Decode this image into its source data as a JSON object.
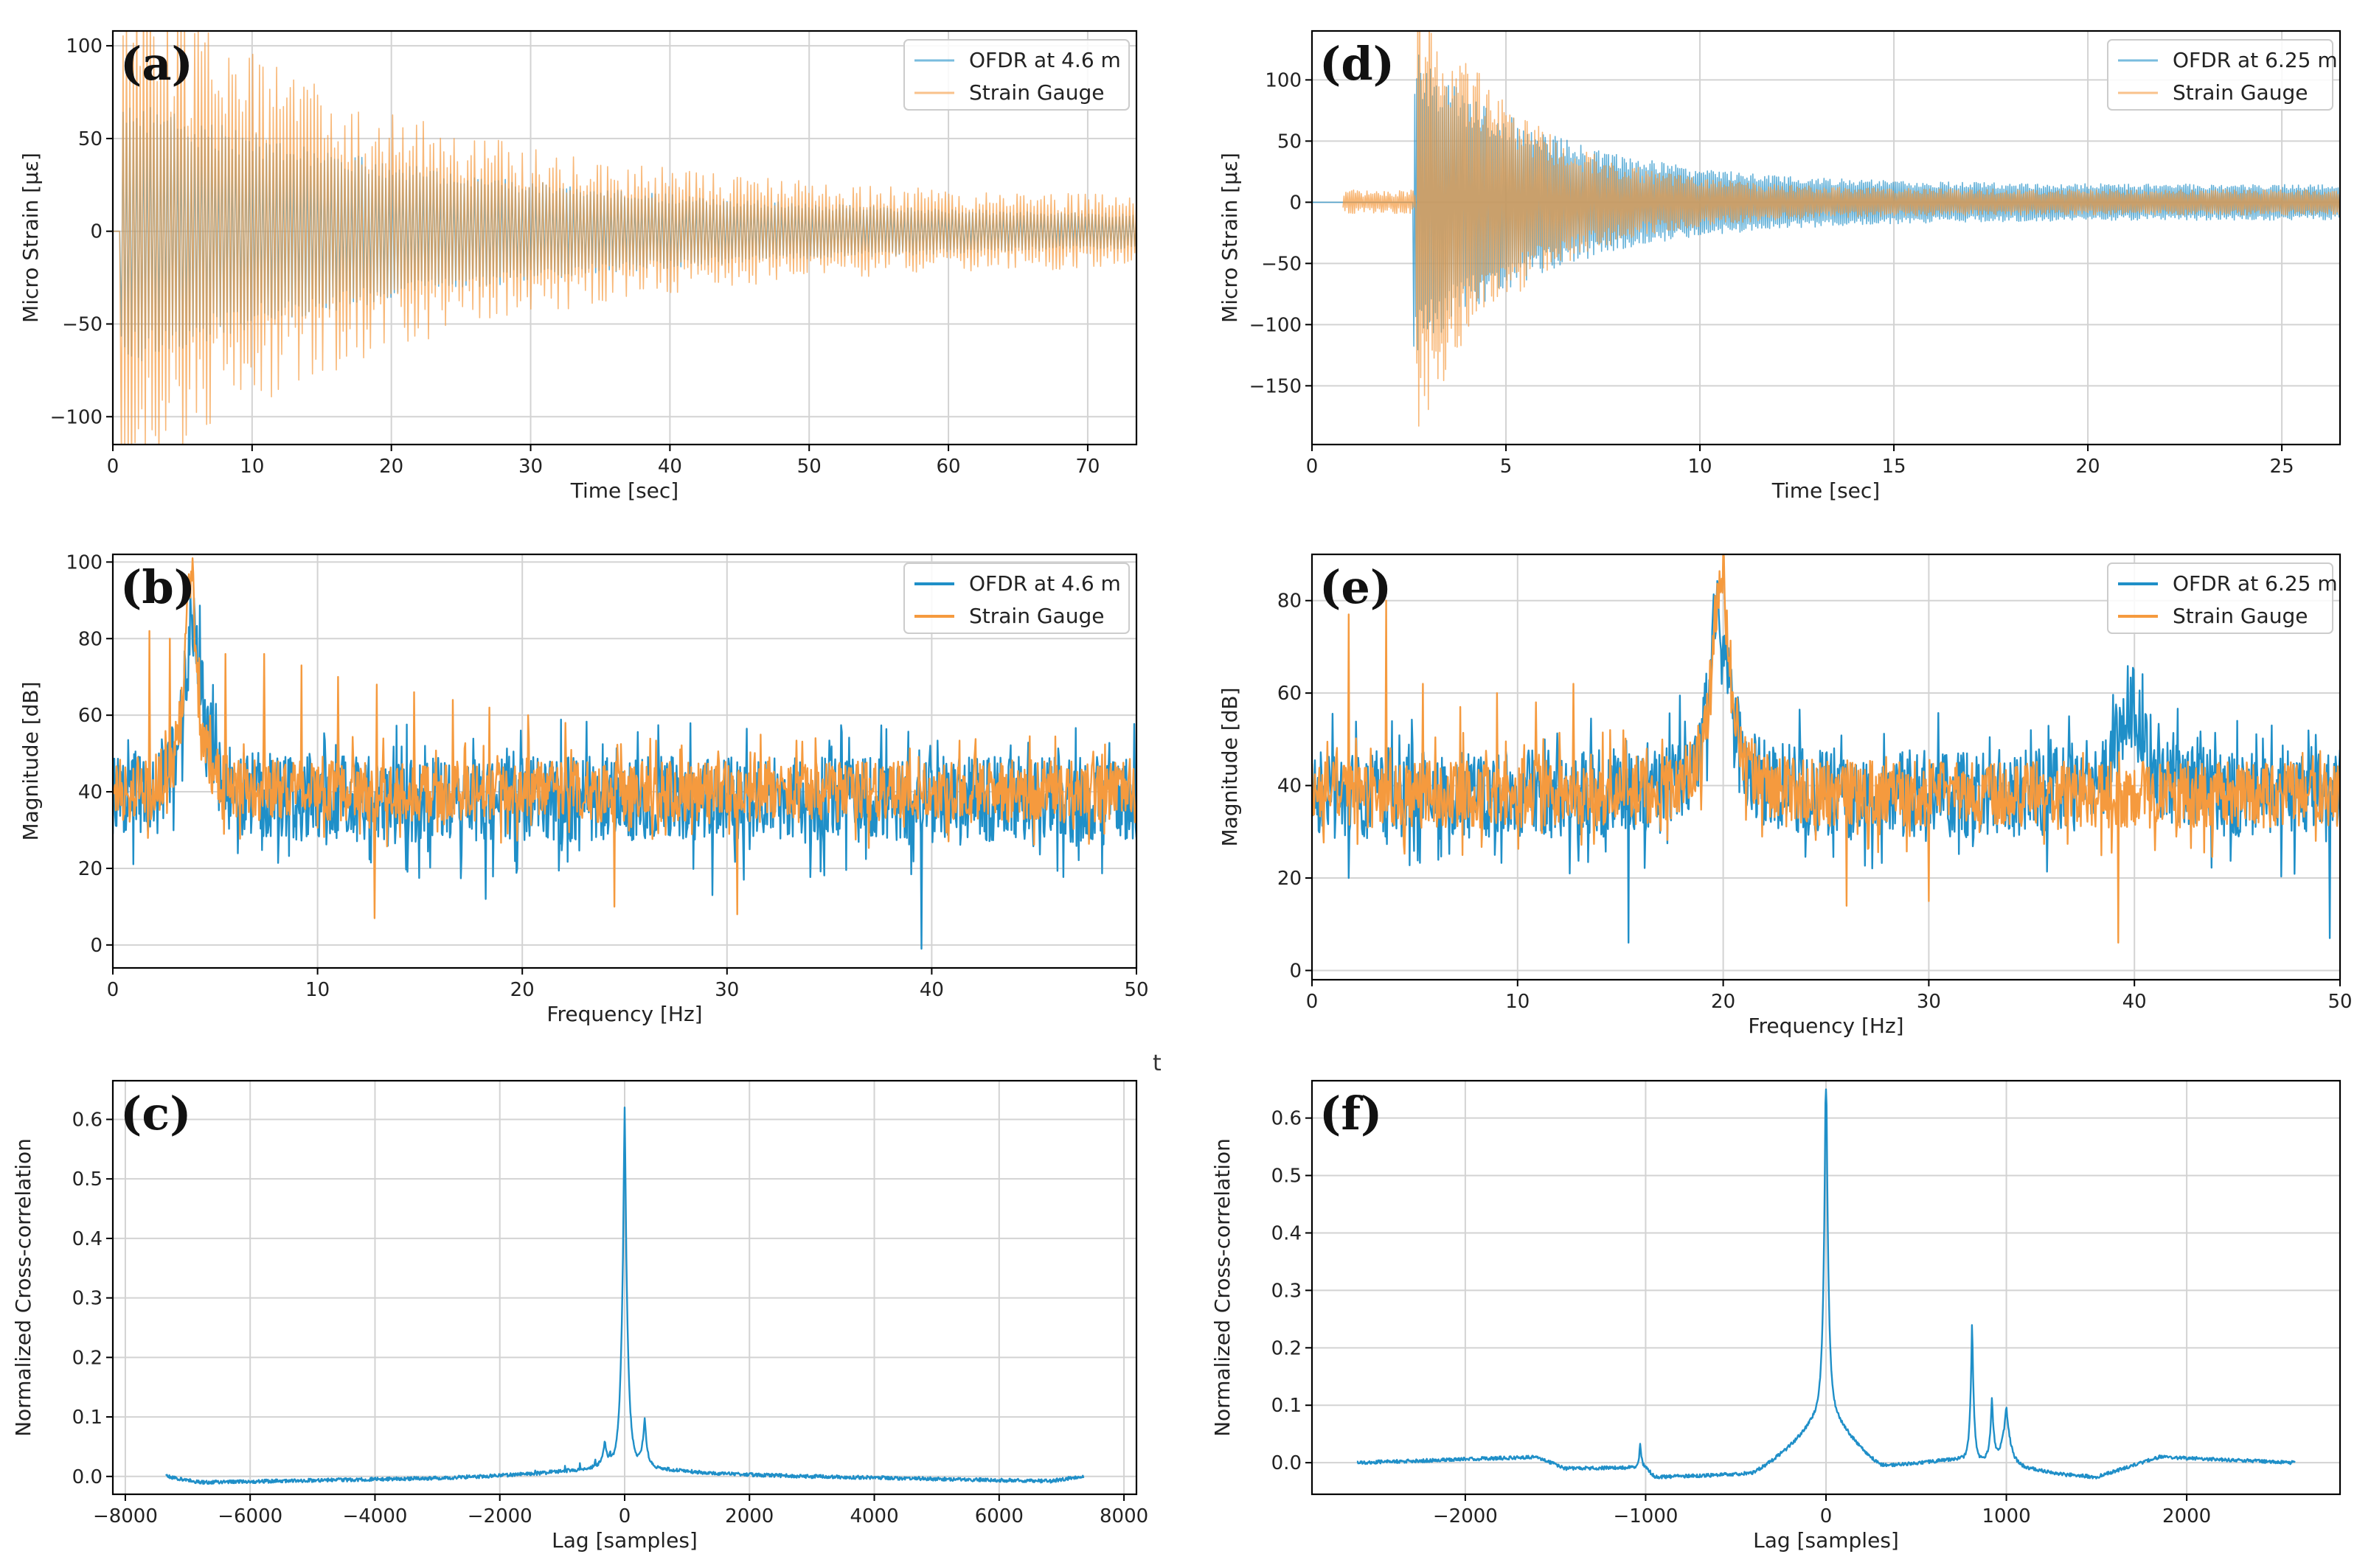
{
  "colors": {
    "ofdr": "#1f8fc8",
    "gauge": "#f59a3e",
    "grid": "#d3d3d3",
    "axis": "#000000"
  },
  "stray_text": "t",
  "chart_data": [
    {
      "id": "a",
      "type": "line",
      "letter": "(a)",
      "xlabel": "Time [sec]",
      "ylabel": "Micro Strain [μɛ]",
      "xlim": [
        0,
        73.5
      ],
      "ylim": [
        -115,
        108
      ],
      "xticks": [
        0,
        10,
        20,
        30,
        40,
        50,
        60,
        70
      ],
      "yticks": [
        -100,
        -50,
        0,
        50,
        100
      ],
      "legend": [
        "OFDR at 4.6 m",
        "Strain Gauge"
      ],
      "legend_position": "top-right",
      "series": [
        {
          "name": "OFDR at 4.6 m",
          "kind": "oscillation",
          "thin": true,
          "x_start": 0,
          "x_end": 73.5,
          "start_time": 0.5,
          "amplitude": 60,
          "tau": 25,
          "floor": 5,
          "cycles": 300,
          "noise": 0.15
        },
        {
          "name": "Strain Gauge",
          "kind": "oscillation",
          "thin": true,
          "x_start": 0,
          "x_end": 73.5,
          "start_time": 0.5,
          "amplitude": 95,
          "tau": 20,
          "floor": 12,
          "cycles": 300,
          "noise": 0.35
        }
      ]
    },
    {
      "id": "d",
      "type": "line",
      "letter": "(d)",
      "xlabel": "Time [sec]",
      "ylabel": "Micro Strain [μɛ]",
      "xlim": [
        0,
        26.5
      ],
      "ylim": [
        -198,
        140
      ],
      "xticks": [
        0,
        5,
        10,
        15,
        20,
        25
      ],
      "yticks": [
        -150,
        -100,
        -50,
        0,
        50,
        100
      ],
      "legend": [
        "OFDR at 6.25 m",
        "Strain Gauge"
      ],
      "legend_position": "top-right",
      "series": [
        {
          "name": "OFDR at 6.25 m",
          "kind": "oscillation",
          "thin": true,
          "x_start": 0,
          "x_end": 26.5,
          "start_time": 2.6,
          "amplitude": 95,
          "tau": 3.5,
          "floor": 12,
          "cycles": 520,
          "noise": 0.2,
          "pre_amp": 0
        },
        {
          "name": "Strain Gauge",
          "kind": "oscillation",
          "thin": true,
          "x_start": 0.8,
          "x_end": 26.5,
          "start_time": 2.7,
          "amplitude": 140,
          "tau": 2.5,
          "floor": 8,
          "cycles": 520,
          "noise": 0.3,
          "pre_amp": 10
        }
      ]
    },
    {
      "id": "b",
      "type": "line",
      "letter": "(b)",
      "xlabel": "Frequency [Hz]",
      "ylabel": "Magnitude [dB]",
      "xlim": [
        0,
        50
      ],
      "ylim": [
        -6,
        102
      ],
      "xticks": [
        0,
        10,
        20,
        30,
        40,
        50
      ],
      "yticks": [
        0,
        20,
        40,
        60,
        80,
        100
      ],
      "legend": [
        "OFDR at 4.6 m",
        "Strain Gauge"
      ],
      "legend_position": "top-right",
      "series": [
        {
          "name": "OFDR at 4.6 m",
          "kind": "spectrum",
          "base": 38,
          "noise": 14,
          "peaks": [
            [
              3.9,
              85,
              0.5
            ]
          ],
          "spikes": [],
          "dips": [
            [
              39.5,
              -1
            ],
            [
              18.2,
              12
            ],
            [
              29.3,
              13
            ]
          ]
        },
        {
          "name": "Strain Gauge",
          "kind": "spectrum",
          "base": 40,
          "noise": 10,
          "peaks": [
            [
              3.8,
              97,
              0.35
            ]
          ],
          "spikes": [
            [
              1.8,
              82
            ],
            [
              2.8,
              80
            ],
            [
              5.5,
              76
            ],
            [
              7.4,
              76
            ],
            [
              9.2,
              73
            ],
            [
              11.0,
              70
            ],
            [
              12.9,
              68
            ],
            [
              14.7,
              66
            ],
            [
              16.6,
              64
            ],
            [
              18.4,
              62
            ],
            [
              20.3,
              60
            ],
            [
              22.1,
              58
            ]
          ],
          "dips": [
            [
              12.8,
              7
            ],
            [
              24.5,
              10
            ],
            [
              30.5,
              8
            ]
          ]
        }
      ]
    },
    {
      "id": "e",
      "type": "line",
      "letter": "(e)",
      "xlabel": "Frequency [Hz]",
      "ylabel": "Magnitude [dB]",
      "xlim": [
        0,
        50
      ],
      "ylim": [
        -2,
        90
      ],
      "xticks": [
        0,
        10,
        20,
        30,
        40,
        50
      ],
      "yticks": [
        0,
        20,
        40,
        60,
        80
      ],
      "legend": [
        "OFDR at 6.25 m",
        "Strain Gauge"
      ],
      "legend_position": "top-right",
      "series": [
        {
          "name": "OFDR at 6.25 m",
          "kind": "spectrum",
          "base": 38,
          "noise": 12,
          "peaks": [
            [
              19.8,
              79,
              0.6
            ],
            [
              39.8,
              58,
              0.8
            ]
          ],
          "spikes": [],
          "dips": [
            [
              15.4,
              6
            ],
            [
              49.5,
              7
            ],
            [
              1.8,
              20
            ]
          ]
        },
        {
          "name": "Strain Gauge",
          "kind": "spectrum",
          "base": 38,
          "noise": 9,
          "peaks": [
            [
              19.9,
              87,
              0.5
            ]
          ],
          "spikes": [
            [
              1.8,
              77
            ],
            [
              3.6,
              80
            ],
            [
              5.4,
              62
            ],
            [
              7.2,
              57
            ],
            [
              9.0,
              60
            ],
            [
              10.9,
              58
            ],
            [
              12.7,
              62
            ],
            [
              14.5,
              52
            ],
            [
              16.3,
              48
            ]
          ],
          "dips": [
            [
              39.2,
              6
            ],
            [
              26.0,
              14
            ],
            [
              30.0,
              15
            ]
          ]
        }
      ]
    },
    {
      "id": "c",
      "type": "line",
      "letter": "(c)",
      "xlabel": "Lag [samples]",
      "ylabel": "Normalized Cross-correlation",
      "xlim": [
        -8200,
        8200
      ],
      "ylim": [
        -0.03,
        0.665
      ],
      "xticks": [
        -8000,
        -6000,
        -4000,
        -2000,
        0,
        2000,
        4000,
        6000,
        8000
      ],
      "yticks": [
        0.0,
        0.1,
        0.2,
        0.3,
        0.4,
        0.5,
        0.6
      ],
      "series": [
        {
          "name": "Cross-correlation",
          "kind": "xcorr",
          "x_start": -7350,
          "x_end": 7350,
          "peaks": [
            [
              0,
              0.62,
              45
            ],
            [
              320,
              0.08,
              40
            ],
            [
              -320,
              0.04,
              40
            ]
          ],
          "shoulder": 0.03,
          "shoulder_width": 500,
          "comb_spacing": 240,
          "comb_amp": 0.012,
          "baseline": [
            [
              -7350,
              0.0
            ],
            [
              -6800,
              -0.01
            ],
            [
              -3000,
              -0.003
            ],
            [
              -1000,
              0.005
            ],
            [
              1000,
              0.005
            ],
            [
              3000,
              0.0
            ],
            [
              6800,
              -0.008
            ],
            [
              7350,
              0.0
            ]
          ]
        }
      ]
    },
    {
      "id": "f",
      "type": "line",
      "letter": "(f)",
      "xlabel": "Lag [samples]",
      "ylabel": "Normalized Cross-correlation",
      "xlim": [
        -2850,
        2850
      ],
      "ylim": [
        -0.055,
        0.665
      ],
      "xticks": [
        -2000,
        -1000,
        0,
        1000,
        2000
      ],
      "yticks": [
        0.0,
        0.1,
        0.2,
        0.3,
        0.4,
        0.5,
        0.6
      ],
      "series": [
        {
          "name": "Cross-correlation",
          "kind": "xcorr",
          "x_start": -2600,
          "x_end": 2600,
          "peaks": [
            [
              0,
              0.65,
              12
            ],
            [
              810,
              0.25,
              10
            ],
            [
              -1030,
              0.045,
              8
            ],
            [
              920,
              0.11,
              12
            ],
            [
              1000,
              0.1,
              25
            ]
          ],
          "shoulder": 0.08,
          "shoulder_width": 120,
          "comb_spacing": 0,
          "comb_amp": 0,
          "baseline": [
            [
              -2600,
              0.0
            ],
            [
              -1600,
              0.01
            ],
            [
              -1450,
              -0.01
            ],
            [
              -1000,
              -0.008
            ],
            [
              -950,
              -0.025
            ],
            [
              -400,
              -0.02
            ],
            [
              0,
              0.05
            ],
            [
              300,
              -0.01
            ],
            [
              800,
              0.01
            ],
            [
              1300,
              -0.02
            ],
            [
              1500,
              -0.025
            ],
            [
              1850,
              0.01
            ],
            [
              2600,
              0.0
            ]
          ]
        }
      ]
    }
  ]
}
